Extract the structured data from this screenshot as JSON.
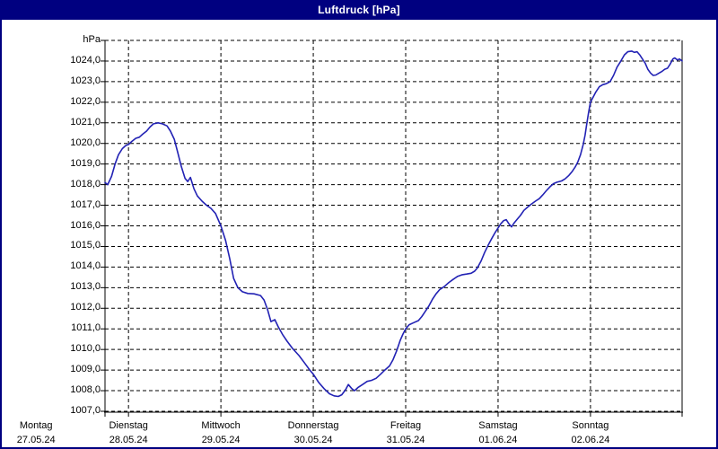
{
  "window": {
    "title": "Luftdruck [hPa]"
  },
  "colors": {
    "frame": "#000080",
    "title_text": "#ffffff",
    "plot_bg": "#ffffff",
    "grid": "#000000",
    "axis": "#000000",
    "line": "#2222B4",
    "label": "#000000"
  },
  "chart_data": {
    "type": "line",
    "title": "Luftdruck [hPa]",
    "unit_label": "hPa",
    "ylabel": "hPa",
    "ylim": [
      1007,
      1025
    ],
    "y_tick_step": 1,
    "y_ticks": [
      "1024,0",
      "1023,0",
      "1022,0",
      "1021,0",
      "1020,0",
      "1019,0",
      "1018,0",
      "1017,0",
      "1016,0",
      "1015,0",
      "1014,0",
      "1013,0",
      "1012,0",
      "1011,0",
      "1010,0",
      "1009,0",
      "1008,0",
      "1007,0"
    ],
    "y_tick_values": [
      1024,
      1023,
      1022,
      1021,
      1020,
      1019,
      1018,
      1017,
      1016,
      1015,
      1014,
      1013,
      1012,
      1011,
      1010,
      1009,
      1008,
      1007
    ],
    "grid": "dashed-black, on",
    "legend": "none",
    "x_days": [
      {
        "label": "Montag",
        "date": "27.05.24",
        "t": 0
      },
      {
        "label": "Dienstag",
        "date": "28.05.24",
        "t": 24
      },
      {
        "label": "Mittwoch",
        "date": "29.05.24",
        "t": 48
      },
      {
        "label": "Donnerstag",
        "date": "30.05.24",
        "t": 72
      },
      {
        "label": "Freitag",
        "date": "31.05.24",
        "t": 96
      },
      {
        "label": "Samstag",
        "date": "01.06.24",
        "t": 120
      },
      {
        "label": "Sonntag",
        "date": "02.06.24",
        "t": 144
      }
    ],
    "x_gridlines_t": [
      24,
      48,
      72,
      96,
      120,
      144
    ],
    "x_range_hours": [
      17.9,
      167.8
    ],
    "x_unit": "hours since Monday 27.05.24 00:00",
    "series": [
      {
        "name": "Luftdruck",
        "unit": "hPa",
        "points": [
          [
            17.9,
            1018.1
          ],
          [
            18.6,
            1018.0
          ],
          [
            19.6,
            1018.4
          ],
          [
            20.5,
            1019.0
          ],
          [
            21.4,
            1019.45
          ],
          [
            22.4,
            1019.75
          ],
          [
            23.3,
            1019.9
          ],
          [
            24.0,
            1019.95
          ],
          [
            24.9,
            1020.1
          ],
          [
            25.9,
            1020.25
          ],
          [
            26.8,
            1020.3
          ],
          [
            27.7,
            1020.45
          ],
          [
            28.7,
            1020.6
          ],
          [
            29.6,
            1020.8
          ],
          [
            30.5,
            1020.95
          ],
          [
            31.7,
            1021.0
          ],
          [
            32.8,
            1020.95
          ],
          [
            34.0,
            1020.85
          ],
          [
            34.9,
            1020.6
          ],
          [
            35.9,
            1020.2
          ],
          [
            36.8,
            1019.55
          ],
          [
            37.7,
            1018.9
          ],
          [
            38.7,
            1018.3
          ],
          [
            39.4,
            1018.15
          ],
          [
            40.1,
            1018.35
          ],
          [
            41.0,
            1017.8
          ],
          [
            41.9,
            1017.45
          ],
          [
            43.1,
            1017.2
          ],
          [
            44.3,
            1017.0
          ],
          [
            45.4,
            1016.85
          ],
          [
            46.6,
            1016.6
          ],
          [
            48.0,
            1016.0
          ],
          [
            49.2,
            1015.3
          ],
          [
            50.3,
            1014.4
          ],
          [
            51.3,
            1013.45
          ],
          [
            52.4,
            1013.0
          ],
          [
            53.6,
            1012.8
          ],
          [
            55.0,
            1012.72
          ],
          [
            56.6,
            1012.7
          ],
          [
            58.3,
            1012.62
          ],
          [
            59.2,
            1012.4
          ],
          [
            60.1,
            1011.95
          ],
          [
            61.0,
            1011.35
          ],
          [
            62.0,
            1011.45
          ],
          [
            62.9,
            1011.1
          ],
          [
            64.1,
            1010.7
          ],
          [
            65.2,
            1010.4
          ],
          [
            66.6,
            1010.05
          ],
          [
            68.3,
            1009.7
          ],
          [
            69.9,
            1009.3
          ],
          [
            71.1,
            1009.0
          ],
          [
            72.0,
            1008.8
          ],
          [
            73.4,
            1008.4
          ],
          [
            74.8,
            1008.1
          ],
          [
            76.2,
            1007.85
          ],
          [
            77.4,
            1007.75
          ],
          [
            78.5,
            1007.72
          ],
          [
            79.4,
            1007.8
          ],
          [
            80.4,
            1008.05
          ],
          [
            81.1,
            1008.3
          ],
          [
            82.0,
            1008.1
          ],
          [
            82.7,
            1008.0
          ],
          [
            83.6,
            1008.15
          ],
          [
            84.8,
            1008.3
          ],
          [
            86.0,
            1008.45
          ],
          [
            87.1,
            1008.5
          ],
          [
            88.3,
            1008.6
          ],
          [
            89.5,
            1008.8
          ],
          [
            90.6,
            1009.0
          ],
          [
            91.8,
            1009.2
          ],
          [
            92.7,
            1009.5
          ],
          [
            93.7,
            1009.95
          ],
          [
            94.6,
            1010.45
          ],
          [
            95.3,
            1010.75
          ],
          [
            96.0,
            1011.0
          ],
          [
            96.9,
            1011.2
          ],
          [
            98.1,
            1011.3
          ],
          [
            99.3,
            1011.4
          ],
          [
            100.2,
            1011.6
          ],
          [
            101.1,
            1011.85
          ],
          [
            102.0,
            1012.1
          ],
          [
            103.0,
            1012.45
          ],
          [
            103.9,
            1012.7
          ],
          [
            104.8,
            1012.9
          ],
          [
            106.0,
            1013.05
          ],
          [
            107.2,
            1013.25
          ],
          [
            108.3,
            1013.4
          ],
          [
            109.5,
            1013.55
          ],
          [
            110.7,
            1013.63
          ],
          [
            111.8,
            1013.66
          ],
          [
            113.0,
            1013.7
          ],
          [
            113.9,
            1013.8
          ],
          [
            114.6,
            1013.95
          ],
          [
            115.6,
            1014.3
          ],
          [
            116.5,
            1014.7
          ],
          [
            117.4,
            1015.05
          ],
          [
            118.4,
            1015.4
          ],
          [
            119.3,
            1015.7
          ],
          [
            120.0,
            1015.9
          ],
          [
            120.7,
            1016.1
          ],
          [
            121.4,
            1016.25
          ],
          [
            122.1,
            1016.3
          ],
          [
            122.8,
            1016.1
          ],
          [
            123.5,
            1015.95
          ],
          [
            124.2,
            1016.15
          ],
          [
            125.1,
            1016.35
          ],
          [
            125.8,
            1016.5
          ],
          [
            126.7,
            1016.75
          ],
          [
            127.6,
            1016.9
          ],
          [
            128.6,
            1017.05
          ],
          [
            129.7,
            1017.2
          ],
          [
            130.7,
            1017.32
          ],
          [
            131.6,
            1017.5
          ],
          [
            132.5,
            1017.7
          ],
          [
            133.5,
            1017.9
          ],
          [
            134.4,
            1018.05
          ],
          [
            135.3,
            1018.12
          ],
          [
            136.5,
            1018.18
          ],
          [
            137.4,
            1018.28
          ],
          [
            138.4,
            1018.45
          ],
          [
            139.3,
            1018.65
          ],
          [
            140.0,
            1018.85
          ],
          [
            140.7,
            1019.1
          ],
          [
            141.4,
            1019.45
          ],
          [
            142.1,
            1019.95
          ],
          [
            142.6,
            1020.4
          ],
          [
            143.0,
            1020.9
          ],
          [
            143.5,
            1021.5
          ],
          [
            144.0,
            1022.0
          ],
          [
            144.7,
            1022.25
          ],
          [
            145.4,
            1022.5
          ],
          [
            146.3,
            1022.75
          ],
          [
            147.2,
            1022.85
          ],
          [
            148.1,
            1022.9
          ],
          [
            149.1,
            1023.0
          ],
          [
            150.0,
            1023.3
          ],
          [
            150.9,
            1023.7
          ],
          [
            151.9,
            1024.0
          ],
          [
            152.8,
            1024.3
          ],
          [
            153.7,
            1024.45
          ],
          [
            154.7,
            1024.48
          ],
          [
            155.4,
            1024.42
          ],
          [
            156.1,
            1024.45
          ],
          [
            156.8,
            1024.3
          ],
          [
            157.5,
            1024.1
          ],
          [
            158.2,
            1023.9
          ],
          [
            158.9,
            1023.6
          ],
          [
            159.6,
            1023.42
          ],
          [
            160.3,
            1023.3
          ],
          [
            161.0,
            1023.32
          ],
          [
            161.7,
            1023.4
          ],
          [
            162.6,
            1023.5
          ],
          [
            163.3,
            1023.6
          ],
          [
            164.0,
            1023.65
          ],
          [
            164.7,
            1023.85
          ],
          [
            165.4,
            1024.1
          ],
          [
            165.9,
            1024.15
          ],
          [
            166.6,
            1024.05
          ],
          [
            167.1,
            1024.1
          ],
          [
            167.8,
            1024.0
          ]
        ]
      }
    ]
  }
}
